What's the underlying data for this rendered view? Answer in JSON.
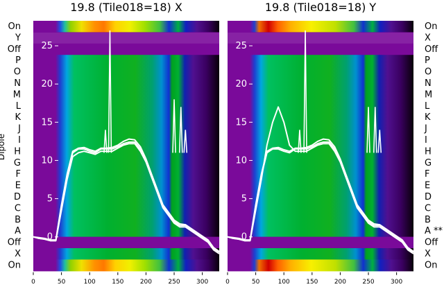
{
  "chart_data": [
    {
      "type": "heatmap",
      "title": "19.8 (Tile018=18) X",
      "ylabel": "Dipole",
      "row_labels": [
        "On",
        "Y",
        "Off",
        "P",
        "O",
        "N",
        "M",
        "L",
        "K",
        "J",
        "I",
        "H",
        "G",
        "F",
        "E",
        "D",
        "C",
        "B",
        "A",
        "Off",
        "X",
        "On"
      ],
      "x_ticks": [
        "0",
        "50",
        "100",
        "150",
        "200",
        "250",
        "300"
      ],
      "xlim": [
        0,
        330
      ],
      "overlay_y_ticks": [
        "25",
        "20",
        "15",
        "10",
        "5",
        "0"
      ],
      "overlay_ylim": [
        -3,
        27
      ],
      "overlay_x": [
        0,
        10,
        20,
        30,
        40,
        50,
        60,
        70,
        80,
        90,
        100,
        110,
        120,
        130,
        140,
        150,
        160,
        170,
        180,
        190,
        200,
        210,
        220,
        230,
        240,
        250,
        260,
        270,
        280,
        290,
        300,
        310,
        320,
        330
      ],
      "overlay_series": [
        {
          "values": [
            0,
            -0.2,
            -0.3,
            -0.5,
            -0.5,
            4,
            8,
            11,
            11.5,
            11.5,
            11.2,
            11,
            11.5,
            11.5,
            11.5,
            11.8,
            12.2,
            12.4,
            12.4,
            11.5,
            10,
            8,
            6,
            4,
            3,
            2,
            1.5,
            1.5,
            1,
            0.5,
            0,
            -0.5,
            -1.5,
            -2
          ]
        },
        {
          "values": [
            0,
            -0.2,
            -0.3,
            -0.5,
            -0.5,
            3.5,
            7.5,
            10.5,
            11,
            11.2,
            11,
            10.8,
            11.2,
            11.2,
            11.2,
            11.6,
            12,
            12.2,
            12.2,
            11.2,
            9.8,
            7.8,
            5.8,
            3.8,
            2.8,
            1.8,
            1.3,
            1.3,
            0.8,
            0.3,
            -0.2,
            -0.7,
            -1.7,
            -2.2
          ]
        },
        {
          "values": [
            0,
            -0.1,
            -0.2,
            -0.4,
            -0.4,
            4.2,
            8.2,
            11.2,
            11.6,
            11.7,
            11.4,
            11.2,
            11.6,
            11.6,
            11.7,
            12,
            12.5,
            12.8,
            12.7,
            11.8,
            10.2,
            8.2,
            6.2,
            4.2,
            3.2,
            2.2,
            1.7,
            1.6,
            1.1,
            0.6,
            0.1,
            -0.4,
            -1.4,
            -1.9
          ]
        }
      ],
      "spikes": [
        {
          "x": 128,
          "y": 14
        },
        {
          "x": 136,
          "y": 27
        },
        {
          "x": 250,
          "y": 18
        },
        {
          "x": 262,
          "y": 17
        },
        {
          "x": 270,
          "y": 14
        }
      ]
    },
    {
      "type": "heatmap",
      "title": "19.8 (Tile018=18) Y",
      "ylabel": "",
      "row_labels": [
        "On",
        "X",
        "Off",
        "P",
        "O",
        "N",
        "M",
        "L",
        "K",
        "J",
        "I",
        "H",
        "G",
        "F",
        "E",
        "D",
        "C",
        "B",
        "A **",
        "Off",
        "X",
        "On"
      ],
      "x_ticks": [
        "0",
        "50",
        "100",
        "150",
        "200",
        "250",
        "300"
      ],
      "xlim": [
        0,
        330
      ],
      "overlay_y_ticks": [
        "25",
        "20",
        "15",
        "10",
        "5",
        "0"
      ],
      "overlay_ylim": [
        -3,
        27
      ],
      "overlay_x": [
        0,
        10,
        20,
        30,
        40,
        50,
        60,
        70,
        80,
        90,
        100,
        110,
        120,
        130,
        140,
        150,
        160,
        170,
        180,
        190,
        200,
        210,
        220,
        230,
        240,
        250,
        260,
        270,
        280,
        290,
        300,
        310,
        320,
        330
      ],
      "overlay_series": [
        {
          "values": [
            0,
            -0.2,
            -0.3,
            -0.5,
            -0.5,
            4,
            8,
            11,
            11.5,
            11.5,
            11.2,
            11,
            11.5,
            11.5,
            11.5,
            11.8,
            12.2,
            12.4,
            12.4,
            11.5,
            10,
            8,
            6,
            4,
            3,
            2,
            1.5,
            1.5,
            1,
            0.5,
            0,
            -0.5,
            -1.5,
            -2
          ]
        },
        {
          "values": [
            0,
            -0.2,
            -0.3,
            -0.5,
            -0.5,
            3.5,
            7.5,
            12,
            15,
            17,
            15,
            12,
            11.2,
            11.2,
            11.2,
            11.6,
            12,
            12.2,
            12.2,
            11.2,
            9.8,
            7.8,
            5.8,
            3.8,
            2.8,
            1.8,
            1.3,
            1.3,
            0.8,
            0.3,
            -0.2,
            -0.7,
            -1.7,
            -2.2
          ]
        },
        {
          "values": [
            0,
            -0.1,
            -0.2,
            -0.4,
            -0.4,
            4.2,
            8.2,
            11.2,
            11.6,
            11.7,
            11.4,
            11.2,
            11.6,
            11.6,
            11.7,
            12,
            12.5,
            12.8,
            12.7,
            11.8,
            10.2,
            8.2,
            6.2,
            4.2,
            3.2,
            2.2,
            1.7,
            1.6,
            1.1,
            0.6,
            0.1,
            -0.4,
            -1.4,
            -1.9
          ]
        }
      ],
      "spikes": [
        {
          "x": 128,
          "y": 14
        },
        {
          "x": 138,
          "y": 27
        },
        {
          "x": 250,
          "y": 17
        },
        {
          "x": 262,
          "y": 17
        },
        {
          "x": 270,
          "y": 14
        }
      ]
    }
  ]
}
